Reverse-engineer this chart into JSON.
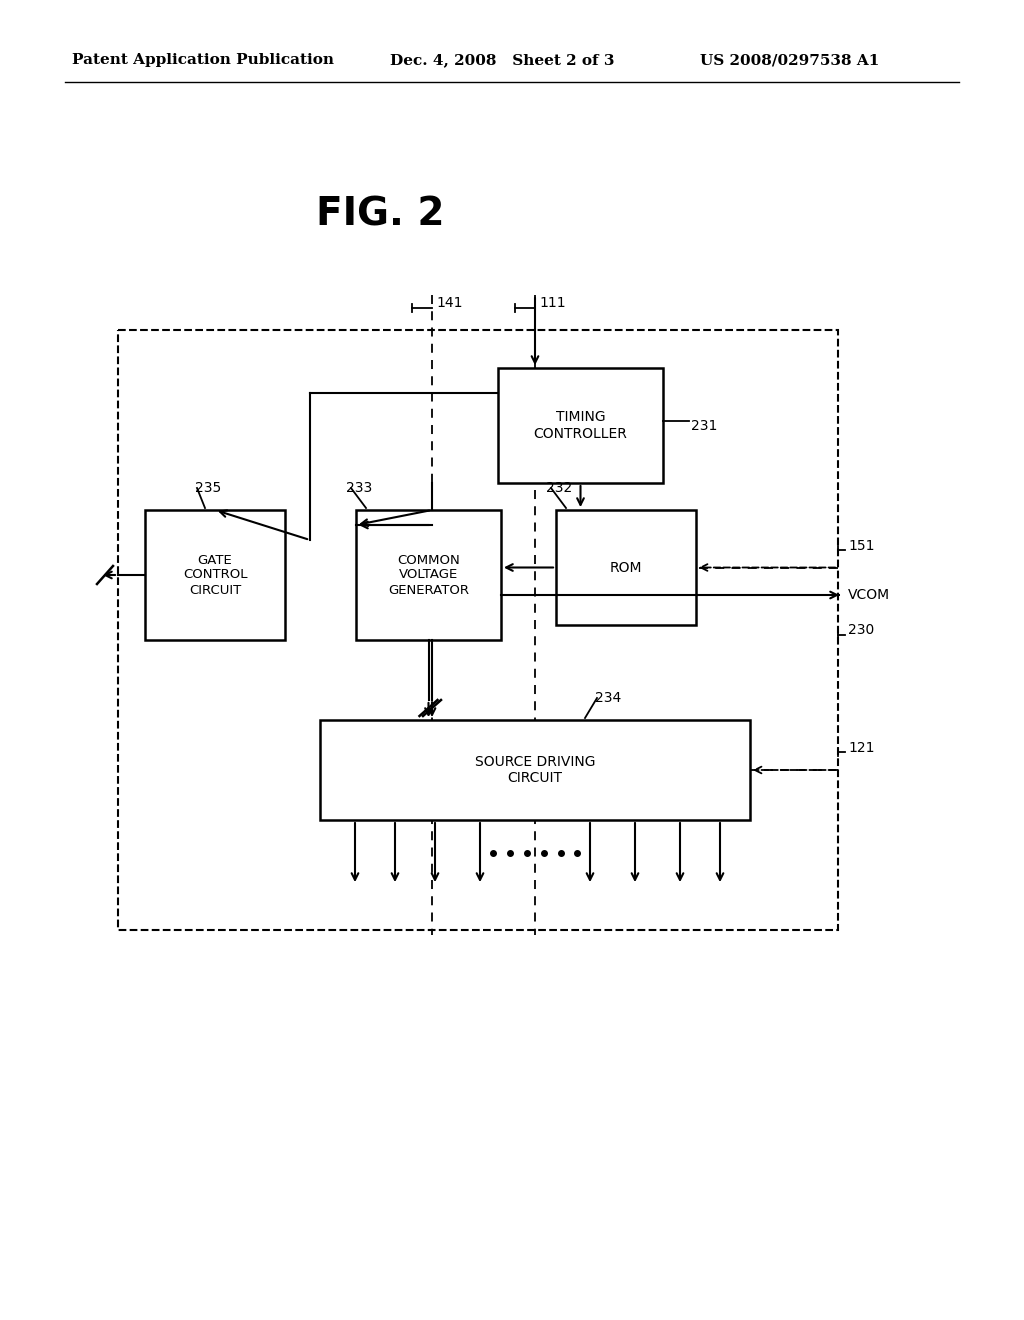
{
  "bg_color": "#ffffff",
  "header_left": "Patent Application Publication",
  "header_mid": "Dec. 4, 2008   Sheet 2 of 3",
  "header_right": "US 2008/0297538 A1",
  "fig_label": "FIG. 2",
  "label_230": "230",
  "label_231": "231",
  "label_232": "232",
  "label_233": "233",
  "label_234": "234",
  "label_235": "235",
  "label_141": "141",
  "label_111": "111",
  "label_151": "151",
  "label_121": "121",
  "label_vcom": "VCOM"
}
